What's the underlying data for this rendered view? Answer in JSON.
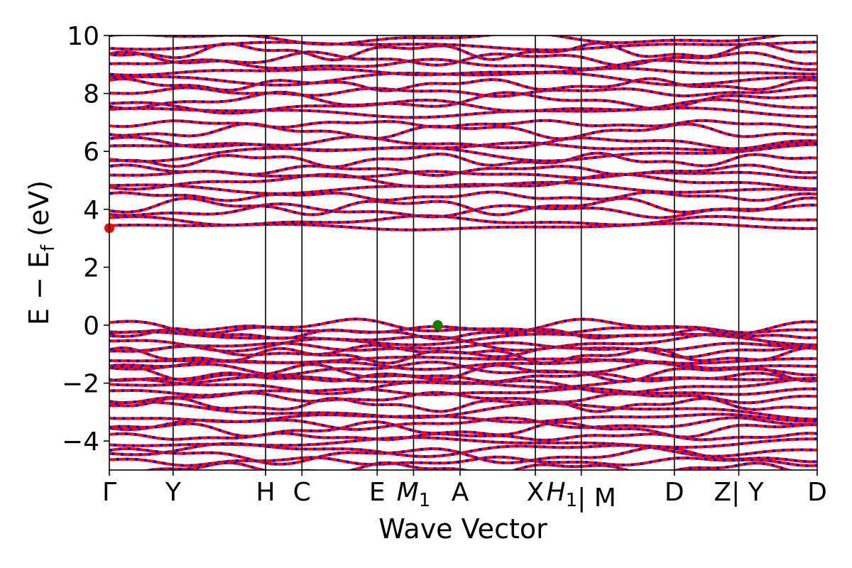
{
  "chart_data": {
    "type": "line",
    "xlabel": "Wave Vector",
    "ylabel": "E − E",
    "ylabel_sub": "f",
    "ylabel_unit": " (eV)",
    "ylim": [
      -5,
      10
    ],
    "yticks": [
      -4,
      -2,
      0,
      2,
      4,
      6,
      8,
      10
    ],
    "ytick_labels": [
      "−4",
      "−2",
      "0",
      "2",
      "4",
      "6",
      "8",
      "10"
    ],
    "xlim": [
      0,
      11.1
    ],
    "kpath": [
      {
        "label": "Γ",
        "x": 0.0
      },
      {
        "label": "Y",
        "x": 1.0
      },
      {
        "label": "H",
        "x": 2.45
      },
      {
        "label": "C",
        "x": 3.02
      },
      {
        "label": "E",
        "x": 4.2
      },
      {
        "label": "M",
        "sub": "1",
        "x": 4.77
      },
      {
        "label": "A",
        "x": 5.5
      },
      {
        "label": "X",
        "x": 6.68
      },
      {
        "label": "H",
        "sub": "1",
        "prefix_gap": true,
        "x": 7.4
      },
      {
        "label": "| M",
        "x": 7.4
      },
      {
        "label": "D",
        "x": 8.86
      },
      {
        "label": "Z",
        "x": 9.87
      },
      {
        "label": "| Y",
        "x": 9.87
      },
      {
        "label": "D",
        "x": 11.1
      }
    ],
    "vlines": [
      1.0,
      2.45,
      3.02,
      4.2,
      4.77,
      5.5,
      6.68,
      7.4,
      8.86,
      9.87
    ],
    "series_colors": {
      "spin_up": "#ff0000",
      "spin_down": "#0000ff"
    },
    "markers": [
      {
        "name": "cbm",
        "x": 0.0,
        "y": 3.35,
        "color": "#ff0000"
      },
      {
        "name": "vbm",
        "x": 5.15,
        "y": 0.0,
        "color": "#008000"
      }
    ],
    "conduction_bands": [
      3.4,
      3.6,
      3.95,
      4.1,
      4.45,
      4.75,
      4.95,
      5.2,
      5.35,
      5.7,
      5.95,
      6.15,
      6.3,
      6.7,
      6.95,
      7.35,
      7.55,
      7.75,
      8.05,
      8.3,
      8.55,
      8.75,
      9.0,
      9.2,
      9.45,
      9.65,
      9.9
    ],
    "valence_bands": [
      -0.05,
      -0.15,
      -0.3,
      -0.45,
      -0.6,
      -0.75,
      -0.9,
      -1.05,
      -1.2,
      -1.35,
      -1.5,
      -1.65,
      -1.8,
      -1.95,
      -2.1,
      -2.3,
      -2.5,
      -2.75,
      -2.95,
      -3.2,
      -3.4,
      -3.6,
      -3.85,
      -4.05,
      -4.3,
      -4.5,
      -4.7,
      -4.95
    ]
  }
}
